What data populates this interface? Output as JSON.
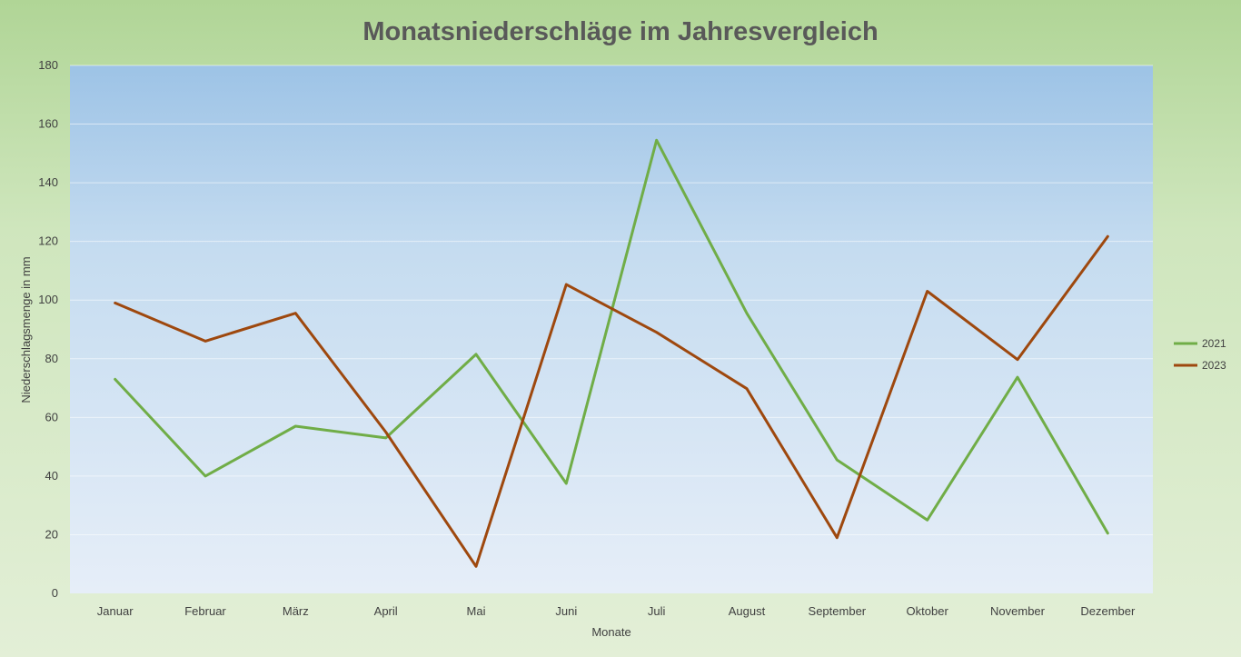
{
  "chart_data": {
    "type": "line",
    "title": "Monatsniederschläge im Jahresvergleich",
    "xlabel": "Monate",
    "ylabel": "Niederschlagsmenge in mm",
    "categories": [
      "Januar",
      "Februar",
      "März",
      "April",
      "Mai",
      "Juni",
      "Juli",
      "August",
      "September",
      "Oktober",
      "November",
      "Dezember"
    ],
    "ylim": [
      0,
      180
    ],
    "yticks": [
      0,
      20,
      40,
      60,
      80,
      100,
      120,
      140,
      160,
      180
    ],
    "grid": true,
    "legend_position": "right",
    "series": [
      {
        "name": "2021",
        "color": "#70ad47",
        "values": [
          73,
          40,
          57,
          53,
          81.5,
          37.5,
          154.5,
          95.5,
          45.5,
          25,
          73.7,
          20.5
        ]
      },
      {
        "name": "2023",
        "color": "#9e480e",
        "values": [
          99,
          86,
          95.5,
          55,
          9.2,
          105.3,
          89,
          69.8,
          19,
          103,
          79.7,
          121.7
        ]
      }
    ]
  }
}
